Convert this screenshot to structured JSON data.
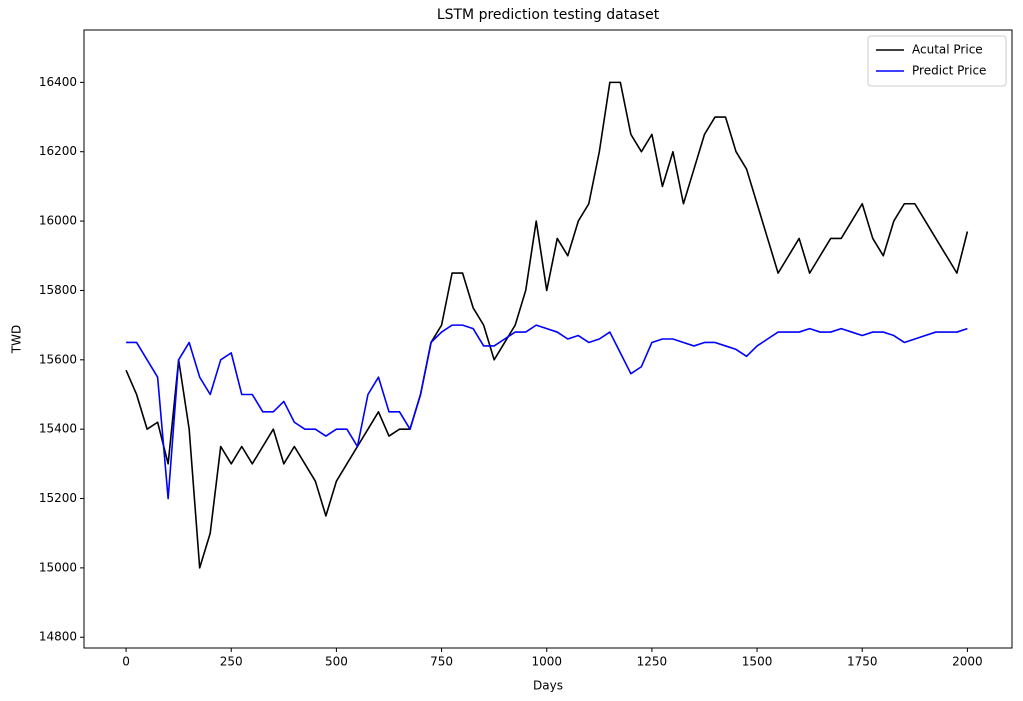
{
  "chart_data": {
    "type": "line",
    "title": "LSTM prediction testing dataset",
    "x_label": "Days",
    "y_label": "TWD",
    "x": [
      0,
      25,
      50,
      75,
      100,
      125,
      150,
      175,
      200,
      225,
      250,
      275,
      300,
      325,
      350,
      375,
      400,
      425,
      450,
      475,
      500,
      525,
      550,
      575,
      600,
      625,
      650,
      675,
      700,
      725,
      750,
      775,
      800,
      825,
      850,
      875,
      900,
      925,
      950,
      975,
      1000,
      1025,
      1050,
      1075,
      1100,
      1125,
      1150,
      1175,
      1200,
      1225,
      1250,
      1275,
      1300,
      1325,
      1350,
      1375,
      1400,
      1425,
      1450,
      1475,
      1500,
      1525,
      1550,
      1575,
      1600,
      1625,
      1650,
      1675,
      1700,
      1725,
      1750,
      1775,
      1800,
      1825,
      1850,
      1875,
      1900,
      1925,
      1950,
      1975,
      2000
    ],
    "series": [
      {
        "name": "Acutal Price",
        "color": "#000000",
        "values": [
          15570,
          15500,
          15400,
          15420,
          15300,
          15600,
          15400,
          15000,
          15100,
          15350,
          15300,
          15350,
          15300,
          15350,
          15400,
          15300,
          15350,
          15300,
          15250,
          15150,
          15250,
          15300,
          15350,
          15400,
          15450,
          15380,
          15400,
          15400,
          15500,
          15650,
          15700,
          15850,
          15850,
          15750,
          15700,
          15600,
          15650,
          15700,
          15800,
          16000,
          15800,
          15950,
          15900,
          16000,
          16050,
          16200,
          16400,
          16400,
          16250,
          16200,
          16250,
          16100,
          16200,
          16050,
          16150,
          16250,
          16300,
          16300,
          16200,
          16150,
          16050,
          15950,
          15850,
          15900,
          15950,
          15850,
          15900,
          15950,
          15950,
          16000,
          16050,
          15950,
          15900,
          16000,
          16050,
          16050,
          16000,
          15950,
          15900,
          15850,
          15970
        ]
      },
      {
        "name": "Predict Price",
        "color": "#0000ff",
        "values": [
          15650,
          15650,
          15600,
          15550,
          15200,
          15600,
          15650,
          15550,
          15500,
          15600,
          15620,
          15500,
          15500,
          15450,
          15450,
          15480,
          15420,
          15400,
          15400,
          15380,
          15400,
          15400,
          15350,
          15500,
          15550,
          15450,
          15450,
          15400,
          15500,
          15650,
          15680,
          15700,
          15700,
          15690,
          15640,
          15640,
          15660,
          15680,
          15680,
          15700,
          15690,
          15680,
          15660,
          15670,
          15650,
          15660,
          15680,
          15620,
          15560,
          15580,
          15650,
          15660,
          15660,
          15650,
          15640,
          15650,
          15650,
          15640,
          15630,
          15610,
          15640,
          15660,
          15680,
          15680,
          15680,
          15690,
          15680,
          15680,
          15690,
          15680,
          15670,
          15680,
          15680,
          15670,
          15650,
          15660,
          15670,
          15680,
          15680,
          15680,
          15690
        ]
      }
    ],
    "xlim": [
      -100,
      2106
    ],
    "ylim": [
      14769,
      16551
    ],
    "xticks": [
      0,
      250,
      500,
      750,
      1000,
      1250,
      1500,
      1750,
      2000
    ],
    "yticks": [
      14800,
      15000,
      15200,
      15400,
      15600,
      15800,
      16000,
      16200,
      16400
    ],
    "legend": "upper right",
    "grid": false
  }
}
